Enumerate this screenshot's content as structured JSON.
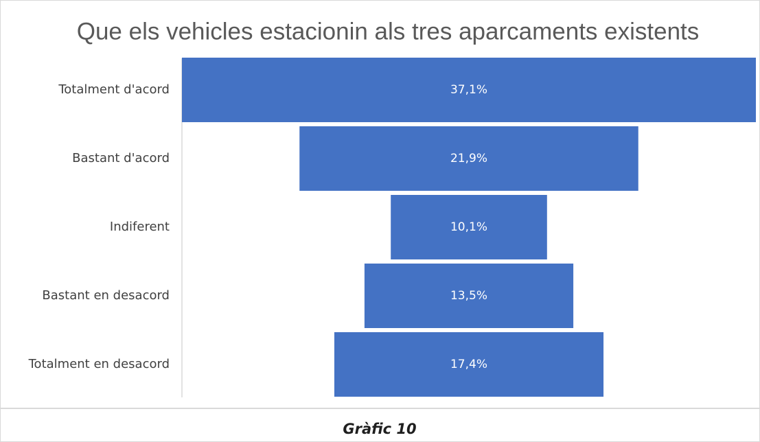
{
  "chart_data": {
    "type": "funnel",
    "title": "Que els vehicles estacionin als tres aparcaments existents",
    "categories": [
      "Totalment d'acord",
      "Bastant d'acord",
      "Indiferent",
      "Bastant en desacord",
      "Totalment en desacord"
    ],
    "values": [
      37.1,
      21.9,
      10.1,
      13.5,
      17.4
    ],
    "value_labels": [
      "37,1%",
      "21,9%",
      "10,1%",
      "13,5%",
      "17,4%"
    ],
    "color": "#4472c4"
  },
  "caption": "Gràfic 10"
}
